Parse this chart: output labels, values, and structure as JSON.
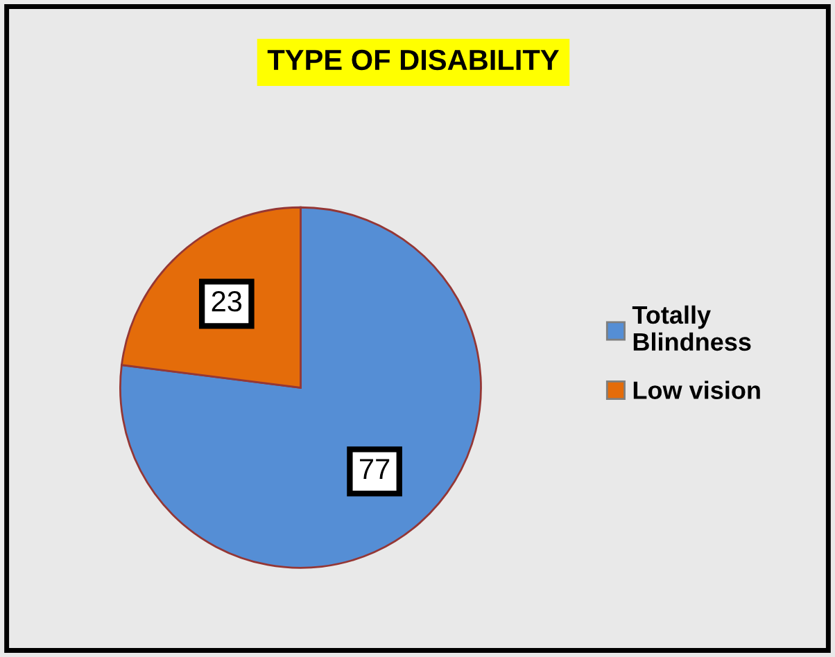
{
  "chart_data": {
    "type": "pie",
    "title": "TYPE OF DISABILITY",
    "categories": [
      "Totally Blindness",
      "Low vision"
    ],
    "values": [
      77,
      23
    ],
    "colors": [
      "#558ed5",
      "#e46c0a"
    ],
    "data_labels": true,
    "legend": "right"
  }
}
